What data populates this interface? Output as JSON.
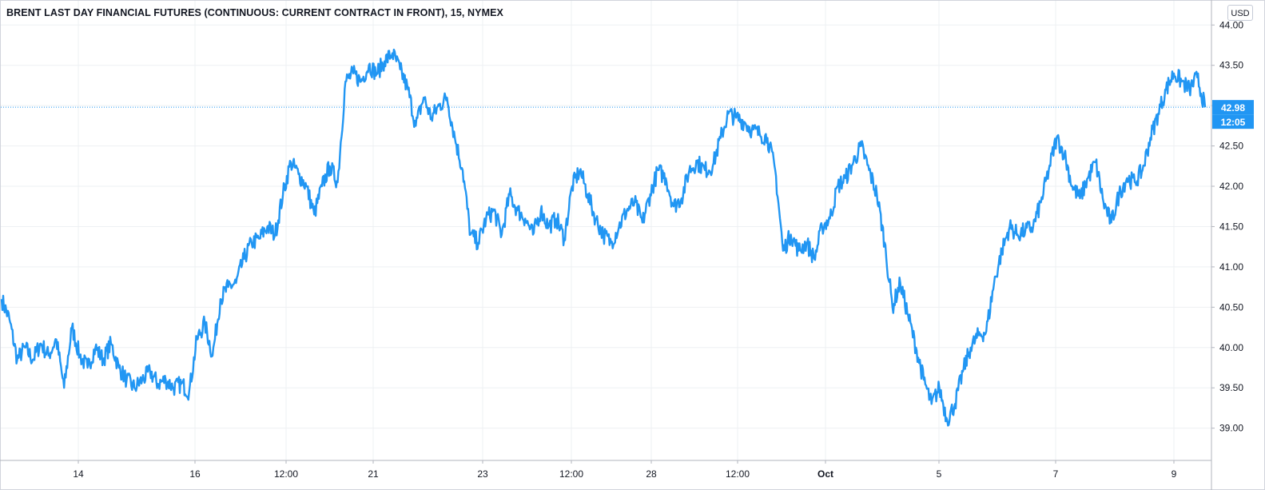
{
  "title": "BRENT LAST DAY FINANCIAL FUTURES (CONTINUOUS: CURRENT CONTRACT IN FRONT), 15, NYMEX",
  "currency_button": "USD",
  "last_price_label": "42.98",
  "countdown_label": "12:05",
  "colors": {
    "line": "#2196f3",
    "grid": "#eef0f3",
    "axis": "#787b86",
    "text": "#131722",
    "dotted_price_line": "#2196f3"
  },
  "chart_data": {
    "type": "line",
    "title": "BRENT LAST DAY FINANCIAL FUTURES (CONTINUOUS: CURRENT CONTRACT IN FRONT), 15, NYMEX",
    "xlabel": "",
    "ylabel": "",
    "ylim": [
      38.6,
      44.3
    ],
    "y_ticks": [
      "44.00",
      "43.50",
      "43.00",
      "42.50",
      "42.00",
      "41.50",
      "41.00",
      "40.50",
      "40.00",
      "39.50",
      "39.00"
    ],
    "x_ticks": [
      "14",
      "16",
      "12:00",
      "21",
      "23",
      "12:00",
      "28",
      "12:00",
      "Oct",
      "5",
      "7",
      "9"
    ],
    "x_range": [
      0,
      28.3
    ],
    "x_tick_positions": [
      3.0,
      6.0,
      9.0,
      12.0,
      15.0,
      18.0,
      21.0,
      24.0,
      27.0,
      30.0,
      33.0,
      36.0
    ],
    "last_value": 42.98,
    "grid": true,
    "legend": "none",
    "series": [
      {
        "values": [
          40.6,
          40.35,
          39.85,
          40.0,
          39.85,
          40.05,
          39.9,
          40.1,
          39.5,
          40.25,
          39.9,
          39.75,
          40.0,
          39.85,
          40.05,
          39.75,
          39.6,
          39.5,
          39.6,
          39.7,
          39.55,
          39.6,
          39.5,
          39.55,
          39.45,
          40.1,
          40.3,
          39.9,
          40.6,
          40.75,
          40.8,
          41.1,
          41.3,
          41.35,
          41.5,
          41.4,
          41.9,
          42.3,
          42.15,
          42.0,
          41.65,
          42.0,
          42.25,
          42.05,
          43.3,
          43.4,
          43.3,
          43.5,
          43.4,
          43.55,
          43.65,
          43.45,
          43.2,
          42.75,
          43.1,
          42.85,
          43.0,
          43.1,
          42.6,
          42.2,
          41.4,
          41.3,
          41.6,
          41.7,
          41.4,
          41.9,
          41.7,
          41.6,
          41.4,
          41.7,
          41.5,
          41.6,
          41.35,
          42.0,
          42.2,
          41.9,
          41.6,
          41.4,
          41.3,
          41.5,
          41.7,
          41.8,
          41.55,
          41.9,
          42.2,
          42.1,
          41.75,
          41.85,
          42.2,
          42.3,
          42.2,
          42.25,
          42.6,
          42.9,
          42.85,
          42.8,
          42.7,
          42.65,
          42.6,
          42.2,
          41.2,
          41.4,
          41.2,
          41.3,
          41.1,
          41.5,
          41.6,
          42.0,
          42.1,
          42.3,
          42.5,
          42.2,
          41.9,
          41.3,
          40.5,
          40.8,
          40.4,
          40.0,
          39.6,
          39.3,
          39.5,
          39.1,
          39.3,
          39.7,
          40.0,
          40.15,
          40.2,
          40.8,
          41.2,
          41.5,
          41.4,
          41.45,
          41.5,
          41.8,
          42.2,
          42.6,
          42.4,
          42.0,
          41.85,
          42.1,
          42.3,
          41.8,
          41.55,
          41.9,
          42.1,
          42.05,
          42.2,
          42.6,
          42.9,
          43.2,
          43.4,
          43.3,
          43.2,
          43.35,
          42.98
        ]
      }
    ]
  }
}
